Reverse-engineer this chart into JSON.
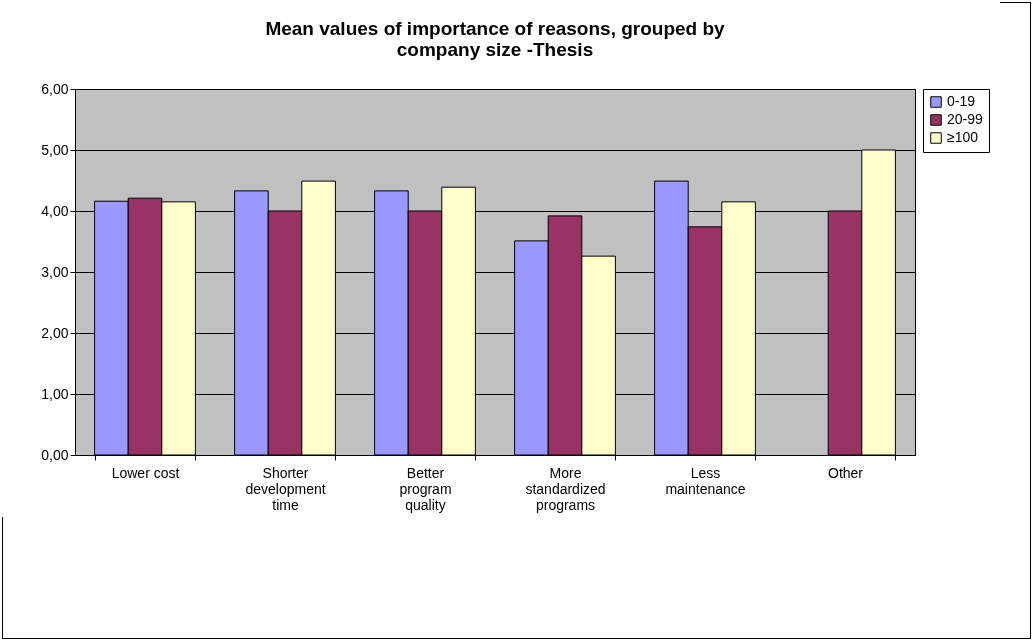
{
  "chart_data": {
    "type": "bar",
    "title": "Mean values of importance of reasons, grouped by company size -Thesis",
    "categories": [
      "Lower cost",
      "Shorter development time",
      "Better program quality",
      "More standardized programs",
      "Less maintenance",
      "Other"
    ],
    "series": [
      {
        "name": "0-19",
        "color": "#9999ff",
        "values": [
          4.16,
          4.33,
          4.33,
          3.51,
          4.49,
          null
        ]
      },
      {
        "name": "20-99",
        "color": "#993366",
        "values": [
          4.21,
          4.0,
          4.0,
          3.92,
          3.74,
          4.0
        ]
      },
      {
        "name": "≥100",
        "color": "#ffffcc",
        "values": [
          4.15,
          4.49,
          4.39,
          3.26,
          4.15,
          5.0
        ]
      }
    ],
    "ylim": [
      0,
      6
    ],
    "yticks": [
      {
        "value": 0,
        "label": "0,00"
      },
      {
        "value": 1,
        "label": "1,00"
      },
      {
        "value": 2,
        "label": "2,00"
      },
      {
        "value": 3,
        "label": "3,00"
      },
      {
        "value": 4,
        "label": "4,00"
      },
      {
        "value": 5,
        "label": "5,00"
      },
      {
        "value": 6,
        "label": "6,00"
      }
    ],
    "grid": "y",
    "legend": "right"
  }
}
